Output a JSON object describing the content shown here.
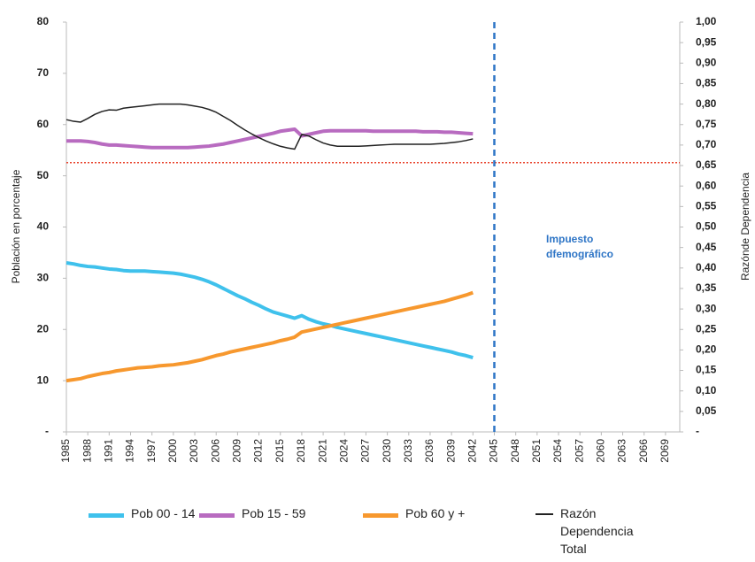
{
  "chart_data": {
    "type": "line",
    "x": [
      1985,
      1986,
      1987,
      1988,
      1989,
      1990,
      1991,
      1992,
      1993,
      1994,
      1995,
      1996,
      1997,
      1998,
      1999,
      2000,
      2001,
      2002,
      2003,
      2004,
      2005,
      2006,
      2007,
      2008,
      2009,
      2010,
      2011,
      2012,
      2013,
      2014,
      2015,
      2016,
      2017,
      2018,
      2019,
      2020,
      2021,
      2022,
      2023,
      2024,
      2025,
      2026,
      2027,
      2028,
      2029,
      2030,
      2031,
      2032,
      2033,
      2034,
      2035,
      2036,
      2037,
      2038,
      2039,
      2040,
      2041,
      2042
    ],
    "series": [
      {
        "name": "Pob 00 - 14",
        "color": "#3fc1ec",
        "values": [
          33,
          32.8,
          32.5,
          32.3,
          32.2,
          32.0,
          31.8,
          31.7,
          31.5,
          31.4,
          31.4,
          31.4,
          31.3,
          31.2,
          31.1,
          31.0,
          30.8,
          30.5,
          30.2,
          29.8,
          29.3,
          28.7,
          28.0,
          27.3,
          26.6,
          26.0,
          25.3,
          24.7,
          24.0,
          23.4,
          23.0,
          22.6,
          22.2,
          22.7,
          22.0,
          21.5,
          21.1,
          20.8,
          20.4,
          20.1,
          19.8,
          19.5,
          19.2,
          18.9,
          18.6,
          18.3,
          18.0,
          17.7,
          17.4,
          17.1,
          16.8,
          16.5,
          16.2,
          15.9,
          15.6,
          15.2,
          14.9,
          14.5
        ]
      },
      {
        "name": "Pob 15 - 59",
        "color": "#b86bc0",
        "values": [
          56.8,
          56.8,
          56.8,
          56.7,
          56.5,
          56.2,
          56.0,
          56.0,
          55.9,
          55.8,
          55.7,
          55.6,
          55.5,
          55.5,
          55.5,
          55.5,
          55.5,
          55.5,
          55.6,
          55.7,
          55.8,
          56.0,
          56.2,
          56.5,
          56.8,
          57.1,
          57.4,
          57.7,
          58.0,
          58.3,
          58.7,
          58.9,
          59.1,
          57.8,
          58.1,
          58.4,
          58.7,
          58.8,
          58.8,
          58.8,
          58.8,
          58.8,
          58.8,
          58.7,
          58.7,
          58.7,
          58.7,
          58.7,
          58.7,
          58.7,
          58.6,
          58.6,
          58.6,
          58.5,
          58.5,
          58.4,
          58.3,
          58.2
        ]
      },
      {
        "name": "Pob 60 y +",
        "color": "#f7982e",
        "values": [
          10.0,
          10.2,
          10.4,
          10.8,
          11.1,
          11.4,
          11.6,
          11.9,
          12.1,
          12.3,
          12.5,
          12.6,
          12.7,
          12.9,
          13.0,
          13.1,
          13.3,
          13.5,
          13.8,
          14.1,
          14.5,
          14.9,
          15.2,
          15.6,
          15.9,
          16.2,
          16.5,
          16.8,
          17.1,
          17.4,
          17.8,
          18.1,
          18.5,
          19.5,
          19.8,
          20.1,
          20.4,
          20.7,
          21.0,
          21.3,
          21.6,
          21.9,
          22.2,
          22.5,
          22.8,
          23.1,
          23.4,
          23.7,
          24.0,
          24.3,
          24.6,
          24.9,
          25.2,
          25.5,
          25.9,
          26.3,
          26.7,
          27.2
        ]
      },
      {
        "name": "Razón Dependencia Total",
        "color": "#222222",
        "axis": "y2",
        "values": [
          0.762,
          0.758,
          0.756,
          0.765,
          0.775,
          0.782,
          0.786,
          0.785,
          0.79,
          0.792,
          0.794,
          0.796,
          0.798,
          0.8,
          0.8,
          0.8,
          0.8,
          0.798,
          0.795,
          0.792,
          0.787,
          0.78,
          0.77,
          0.76,
          0.748,
          0.737,
          0.727,
          0.718,
          0.71,
          0.703,
          0.697,
          0.693,
          0.69,
          0.726,
          0.722,
          0.713,
          0.705,
          0.7,
          0.697,
          0.697,
          0.697,
          0.697,
          0.698,
          0.699,
          0.7,
          0.701,
          0.702,
          0.702,
          0.702,
          0.702,
          0.702,
          0.702,
          0.703,
          0.704,
          0.706,
          0.708,
          0.711,
          0.715
        ]
      }
    ],
    "xlim": [
      1985,
      2071
    ],
    "xticks": [
      1985,
      1988,
      1991,
      1994,
      1997,
      2000,
      2003,
      2006,
      2009,
      2012,
      2015,
      2018,
      2021,
      2024,
      2027,
      2030,
      2033,
      2036,
      2039,
      2042,
      2045,
      2048,
      2051,
      2054,
      2057,
      2060,
      2063,
      2066,
      2069
    ],
    "ylim": [
      0,
      80
    ],
    "yticks": [
      {
        "value": 0,
        "label": "-"
      },
      10,
      20,
      30,
      40,
      50,
      60,
      70,
      80
    ],
    "y2lim": [
      0,
      1
    ],
    "y2ticks": [
      {
        "value": 0,
        "label": "-"
      },
      {
        "value": 0.05,
        "label": "0,05"
      },
      {
        "value": 0.1,
        "label": "0,10"
      },
      {
        "value": 0.15,
        "label": "0,15"
      },
      {
        "value": 0.2,
        "label": "0,20"
      },
      {
        "value": 0.25,
        "label": "0,25"
      },
      {
        "value": 0.3,
        "label": "0,30"
      },
      {
        "value": 0.35,
        "label": "0,35"
      },
      {
        "value": 0.4,
        "label": "0,40"
      },
      {
        "value": 0.45,
        "label": "0,45"
      },
      {
        "value": 0.5,
        "label": "0,50"
      },
      {
        "value": 0.55,
        "label": "0,55"
      },
      {
        "value": 0.6,
        "label": "0,60"
      },
      {
        "value": 0.65,
        "label": "0,65"
      },
      {
        "value": 0.7,
        "label": "0,70"
      },
      {
        "value": 0.75,
        "label": "0,75"
      },
      {
        "value": 0.8,
        "label": "0,80"
      },
      {
        "value": 0.85,
        "label": "0,85"
      },
      {
        "value": 0.9,
        "label": "0,90"
      },
      {
        "value": 0.95,
        "label": "0,95"
      },
      {
        "value": 1,
        "label": "1,00"
      }
    ],
    "ylabel": "Población en porcentaje",
    "y2label": "Razónde Dependencia",
    "reference_lines": [
      {
        "axis": "y2",
        "value": 0.657,
        "color": "#e8402a",
        "style": "dotted"
      },
      {
        "axis": "x",
        "value": 2045,
        "color": "#2e75c6",
        "style": "dashed"
      }
    ],
    "annotations": [
      {
        "text": "Impuesto dfemográfico"
      }
    ],
    "legend": "bottom"
  }
}
